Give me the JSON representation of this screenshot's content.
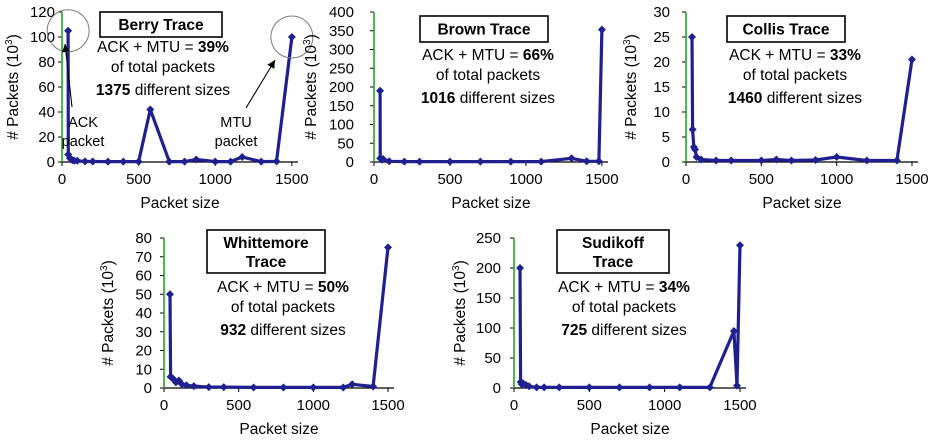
{
  "chart_data": [
    {
      "type": "scatter",
      "title": "Berry Trace",
      "xlabel": "Packet size",
      "ylabel": "# Packets (10",
      "ylabel_sup": "3",
      "ylabel_close": ")",
      "xlim": [
        0,
        1540
      ],
      "ylim": [
        0,
        120
      ],
      "xticks": [
        "0",
        "500",
        "1000",
        "1500"
      ],
      "yticks": [
        "0",
        "20",
        "40",
        "60",
        "80",
        "100",
        "120"
      ],
      "annotation": {
        "line1_pre": "ACK + MTU = ",
        "line1_bold": "39%",
        "line2": "of total packets",
        "line3_bold": "1375",
        "line3_rest": " different sizes"
      },
      "callouts": [
        {
          "lines": [
            "ACK",
            "packet"
          ],
          "target_x": 40,
          "target_y": 105
        },
        {
          "lines": [
            "MTU",
            "packet"
          ],
          "target_x": 1500,
          "target_y": 100
        }
      ],
      "series": [
        {
          "x": [
            40,
            41,
            52,
            60,
            70,
            80,
            100,
            150,
            200,
            300,
            400,
            500,
            576,
            700,
            800,
            876,
            1000,
            1100,
            1176,
            1300,
            1400,
            1500
          ],
          "y": [
            105,
            6,
            3,
            2,
            1.5,
            1,
            1,
            0.5,
            0.4,
            0.3,
            0.3,
            0.3,
            42,
            0.3,
            0.3,
            2,
            0.3,
            0.3,
            4,
            0.3,
            0.5,
            100
          ]
        }
      ]
    },
    {
      "type": "scatter",
      "title": "Brown Trace",
      "xlabel": "Packet size",
      "ylabel": "# Packets (10",
      "ylabel_sup": "3",
      "ylabel_close": ")",
      "xlim": [
        0,
        1540
      ],
      "ylim": [
        0,
        400
      ],
      "xticks": [
        "0",
        "500",
        "1000",
        "1500"
      ],
      "yticks": [
        "0",
        "50",
        "100",
        "150",
        "200",
        "250",
        "300",
        "350",
        "400"
      ],
      "annotation": {
        "line1_pre": "ACK + MTU = ",
        "line1_bold": "66%",
        "line2": "of total packets",
        "line3_bold": "1016",
        "line3_rest": " different sizes"
      },
      "series": [
        {
          "x": [
            40,
            41,
            52,
            60,
            100,
            200,
            300,
            500,
            700,
            900,
            1100,
            1300,
            1400,
            1480,
            1500
          ],
          "y": [
            190,
            10,
            6,
            8,
            2,
            1,
            1,
            1,
            1,
            1,
            1,
            10,
            2,
            2,
            353
          ]
        }
      ]
    },
    {
      "type": "scatter",
      "title": "Collis Trace",
      "xlabel": "Packet size",
      "ylabel": "# Packets (10",
      "ylabel_sup": "3",
      "ylabel_close": ")",
      "xlim": [
        0,
        1540
      ],
      "ylim": [
        0,
        30
      ],
      "xticks": [
        "0",
        "500",
        "1000",
        "1500"
      ],
      "yticks": [
        "0",
        "5",
        "10",
        "15",
        "20",
        "25",
        "30"
      ],
      "annotation": {
        "line1_pre": "ACK + MTU = ",
        "line1_bold": "33%",
        "line2": "of total packets",
        "line3_bold": "1460",
        "line3_rest": " different sizes"
      },
      "series": [
        {
          "x": [
            40,
            44,
            52,
            60,
            70,
            100,
            200,
            300,
            500,
            600,
            700,
            860,
            1000,
            1200,
            1400,
            1500
          ],
          "y": [
            25,
            6.5,
            3,
            2.5,
            1,
            0.5,
            0.3,
            0.3,
            0.3,
            0.5,
            0.3,
            0.4,
            1,
            0.3,
            0.3,
            20.5
          ]
        }
      ]
    },
    {
      "type": "scatter",
      "title": "Whittemore Trace",
      "title_lines": [
        "Whittemore",
        "Trace"
      ],
      "xlabel": "Packet size",
      "ylabel": "# Packets (10",
      "ylabel_sup": "3",
      "ylabel_close": ")",
      "xlim": [
        0,
        1540
      ],
      "ylim": [
        0,
        80
      ],
      "xticks": [
        "0",
        "500",
        "1000",
        "1500"
      ],
      "yticks": [
        "0",
        "10",
        "20",
        "30",
        "40",
        "50",
        "60",
        "70",
        "80"
      ],
      "annotation": {
        "line1_pre": "ACK + MTU = ",
        "line1_bold": "50%",
        "line2": "of total packets",
        "line3_bold": "932",
        "line3_rest": " different sizes"
      },
      "series": [
        {
          "x": [
            40,
            44,
            52,
            60,
            80,
            100,
            120,
            150,
            200,
            300,
            400,
            600,
            800,
            1000,
            1200,
            1260,
            1400,
            1500
          ],
          "y": [
            50,
            6,
            5.5,
            5,
            3,
            4,
            2,
            1.5,
            1,
            0.5,
            0.5,
            0.3,
            0.3,
            0.3,
            0.3,
            2,
            0.8,
            75
          ]
        }
      ]
    },
    {
      "type": "scatter",
      "title": "Sudikoff Trace",
      "title_lines": [
        "Sudikoff",
        "Trace"
      ],
      "xlabel": "Packet size",
      "ylabel": "# Packets (10",
      "ylabel_sup": "3",
      "ylabel_close": ")",
      "xlim": [
        0,
        1540
      ],
      "ylim": [
        0,
        250
      ],
      "xticks": [
        "0",
        "500",
        "1000",
        "1500"
      ],
      "yticks": [
        "0",
        "50",
        "100",
        "150",
        "200",
        "250"
      ],
      "annotation": {
        "line1_pre": "ACK + MTU = ",
        "line1_bold": "34%",
        "line2": "of total packets",
        "line3_bold": "725",
        "line3_rest": " different sizes"
      },
      "series": [
        {
          "x": [
            40,
            44,
            52,
            60,
            80,
            100,
            150,
            200,
            300,
            500,
            700,
            900,
            1100,
            1300,
            1460,
            1480,
            1500
          ],
          "y": [
            200,
            10,
            6,
            8,
            5,
            3,
            1,
            1,
            1,
            1,
            1,
            1,
            1,
            1,
            95,
            4,
            238
          ]
        }
      ]
    }
  ],
  "colors": {
    "series": "#1f1f8f",
    "yaxis": "#2aa02a",
    "axis": "#000000",
    "callout_circle": "#7a7a7a"
  }
}
